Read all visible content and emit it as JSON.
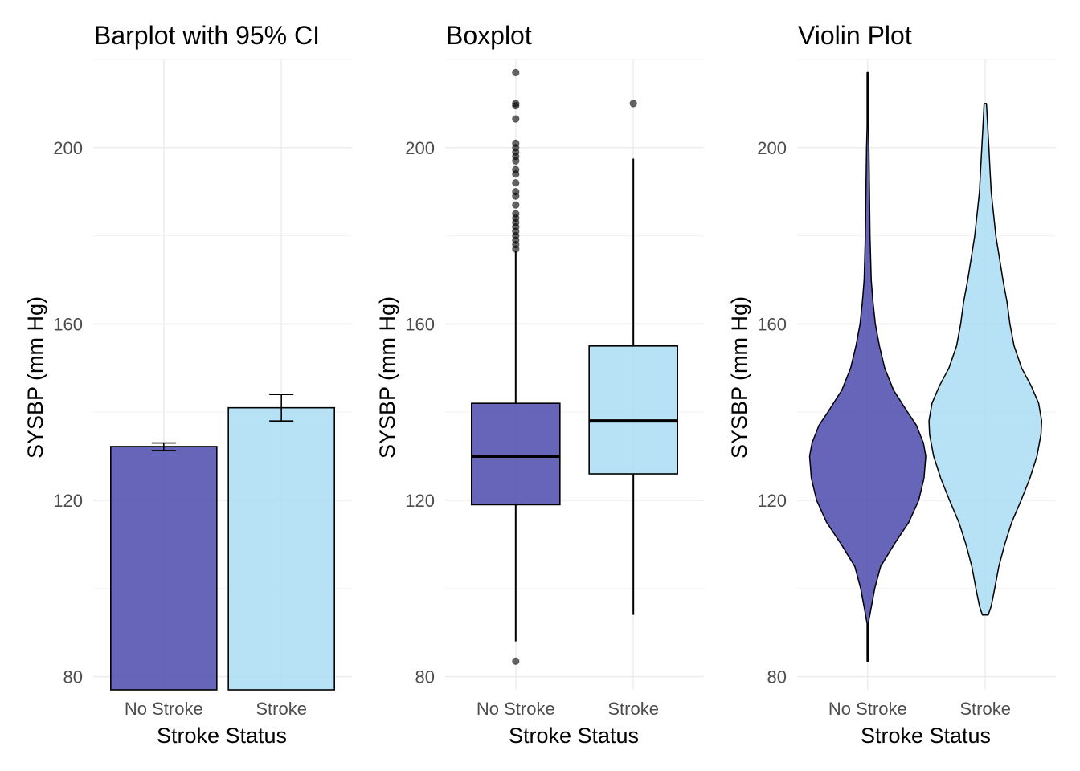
{
  "colors": {
    "no_stroke_fill": "#4b4aad",
    "stroke_fill": "#aadcf2",
    "outline": "#000000",
    "grid": "#ebebeb",
    "tick_text": "#4d4d4d"
  },
  "chart_data": [
    {
      "type": "bar",
      "title": "Barplot with 95% CI",
      "xlabel": "Stroke Status",
      "ylabel": "SYSBP (mm Hg)",
      "categories": [
        "No Stroke",
        "Stroke"
      ],
      "values": [
        132.2,
        141.0
      ],
      "ci_low": [
        131.3,
        138.0
      ],
      "ci_high": [
        133.0,
        144.0
      ],
      "ylim": [
        77,
        220
      ],
      "yticks": [
        80,
        120,
        160,
        200
      ],
      "grid": true,
      "legend": "none"
    },
    {
      "type": "box",
      "title": "Boxplot",
      "xlabel": "Stroke Status",
      "ylabel": "SYSBP (mm Hg)",
      "categories": [
        "No Stroke",
        "Stroke"
      ],
      "boxes": [
        {
          "q1": 119.0,
          "median": 130.0,
          "q3": 142.0,
          "whisker_low": 88.0,
          "whisker_high": 176.5,
          "outliers": [
            83.5,
            177,
            178,
            179,
            180,
            181,
            182,
            183,
            184,
            185,
            187,
            189,
            190,
            192,
            194,
            195,
            197,
            198,
            199,
            200,
            201,
            206.5,
            209.5,
            210,
            217
          ]
        },
        {
          "q1": 126.0,
          "median": 138.0,
          "q3": 155.0,
          "whisker_low": 94.0,
          "whisker_high": 197.5,
          "outliers": [
            210
          ]
        }
      ],
      "ylim": [
        77,
        220
      ],
      "yticks": [
        80,
        120,
        160,
        200
      ],
      "grid": true,
      "legend": "none"
    },
    {
      "type": "violin",
      "title": "Violin Plot",
      "xlabel": "Stroke Status",
      "ylabel": "SYSBP (mm Hg)",
      "categories": [
        "No Stroke",
        "Stroke"
      ],
      "violins": [
        {
          "min": 83.5,
          "max": 217,
          "profile": [
            [
              83.5,
              0.01
            ],
            [
              92,
              0.01
            ],
            [
              95,
              0.05
            ],
            [
              100,
              0.12
            ],
            [
              105,
              0.22
            ],
            [
              110,
              0.45
            ],
            [
              115,
              0.7
            ],
            [
              120,
              0.87
            ],
            [
              125,
              0.96
            ],
            [
              130,
              0.99
            ],
            [
              133,
              0.95
            ],
            [
              137,
              0.83
            ],
            [
              140,
              0.68
            ],
            [
              145,
              0.44
            ],
            [
              150,
              0.29
            ],
            [
              155,
              0.2
            ],
            [
              160,
              0.13
            ],
            [
              165,
              0.09
            ],
            [
              170,
              0.06
            ],
            [
              180,
              0.04
            ],
            [
              190,
              0.03
            ],
            [
              200,
              0.02
            ],
            [
              205,
              0.01
            ],
            [
              217,
              0.01
            ]
          ]
        },
        {
          "min": 94,
          "max": 210,
          "profile": [
            [
              94,
              0.05
            ],
            [
              96,
              0.1
            ],
            [
              100,
              0.16
            ],
            [
              105,
              0.23
            ],
            [
              110,
              0.33
            ],
            [
              115,
              0.45
            ],
            [
              120,
              0.61
            ],
            [
              125,
              0.76
            ],
            [
              130,
              0.88
            ],
            [
              135,
              0.95
            ],
            [
              138,
              0.96
            ],
            [
              142,
              0.91
            ],
            [
              146,
              0.78
            ],
            [
              150,
              0.62
            ],
            [
              155,
              0.49
            ],
            [
              160,
              0.42
            ],
            [
              165,
              0.37
            ],
            [
              170,
              0.3
            ],
            [
              175,
              0.24
            ],
            [
              180,
              0.18
            ],
            [
              185,
              0.14
            ],
            [
              190,
              0.1
            ],
            [
              195,
              0.08
            ],
            [
              200,
              0.06
            ],
            [
              205,
              0.04
            ],
            [
              210,
              0.02
            ]
          ]
        }
      ],
      "ylim": [
        77,
        220
      ],
      "yticks": [
        80,
        120,
        160,
        200
      ],
      "grid": true,
      "legend": "none"
    }
  ]
}
